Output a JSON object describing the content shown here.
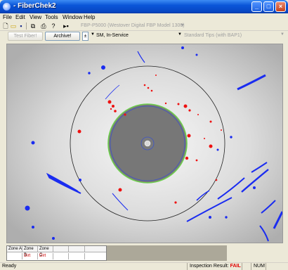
{
  "window": {
    "title": "- FiberChek2"
  },
  "menu": [
    "File",
    "Edit",
    "View",
    "Tools",
    "Window",
    "Help"
  ],
  "toolbar": {
    "model": "FBP-P5000 (Westover Digital FBP Model 1300)",
    "icons": [
      "new-icon",
      "open-icon",
      "save-icon",
      "copy-icon",
      "print-icon",
      "help-icon",
      "probe-icon"
    ]
  },
  "controls": {
    "test_label": "Test Fiber!",
    "archive_label": "Archive!",
    "fiber_type": "SM, In-Service",
    "tips": "Standard Tips (with BAP1)"
  },
  "zones": {
    "headers": [
      "Zone A",
      "Zone B",
      "Zone C"
    ],
    "values": [
      "",
      "Dirt",
      "Dirt"
    ]
  },
  "status": {
    "ready": "Ready",
    "result_label": "Inspection Result:",
    "result_value": "FAIL",
    "num": "NUM"
  },
  "colors": {
    "defect_blue": "#1a2cf0",
    "defect_red": "#ee1111",
    "cladding_ring": "#6fd14f",
    "fail": "#e00000"
  }
}
